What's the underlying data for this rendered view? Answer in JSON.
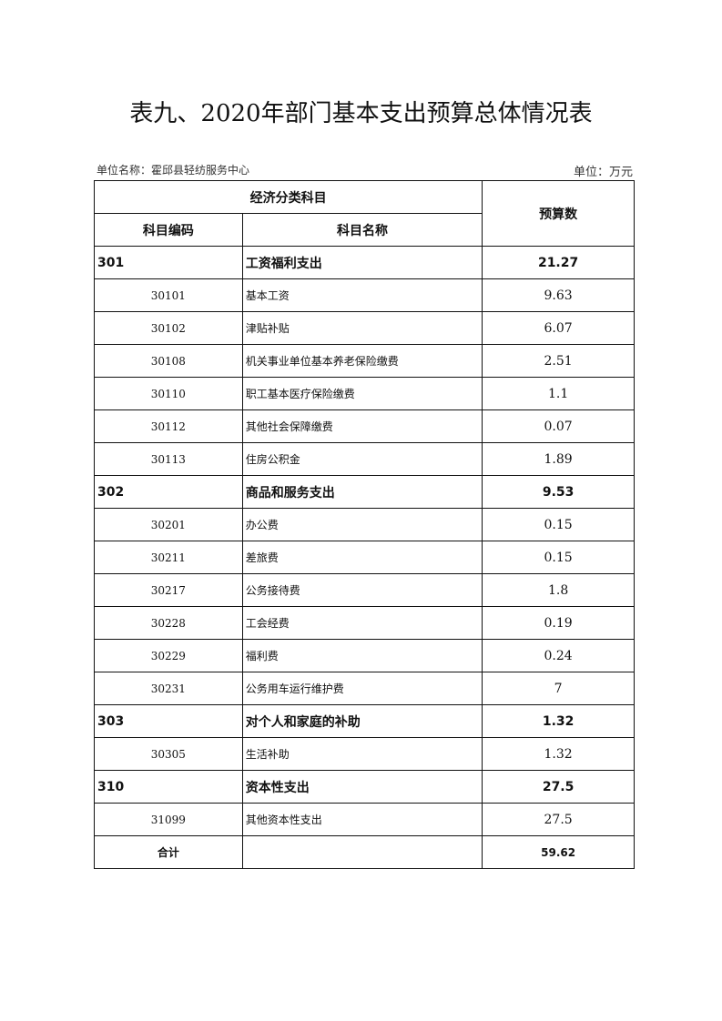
{
  "title": "表九、2020年部门基本支出预算总体情况表",
  "unit_name": "单位名称：霍邱县轻纺服务中心",
  "unit": "单位：万元",
  "header": {
    "group": "经济分类科目",
    "code": "科目编码",
    "name": "科目名称",
    "amount": "预算数"
  },
  "rows": [
    {
      "type": "cat",
      "code": "301",
      "name": "工资福利支出",
      "amount": "21.27"
    },
    {
      "type": "item",
      "code": "30101",
      "name": "基本工资",
      "amount": "9.63"
    },
    {
      "type": "item",
      "code": "30102",
      "name": "津贴补贴",
      "amount": "6.07"
    },
    {
      "type": "item",
      "code": "30108",
      "name": "机关事业单位基本养老保险缴费",
      "amount": "2.51"
    },
    {
      "type": "item",
      "code": "30110",
      "name": "职工基本医疗保险缴费",
      "amount": "1.1"
    },
    {
      "type": "item",
      "code": "30112",
      "name": "其他社会保障缴费",
      "amount": "0.07"
    },
    {
      "type": "item",
      "code": "30113",
      "name": "住房公积金",
      "amount": "1.89"
    },
    {
      "type": "cat",
      "code": "302",
      "name": "商品和服务支出",
      "amount": "9.53"
    },
    {
      "type": "item",
      "code": "30201",
      "name": "办公费",
      "amount": "0.15"
    },
    {
      "type": "item",
      "code": "30211",
      "name": "差旅费",
      "amount": "0.15"
    },
    {
      "type": "item",
      "code": "30217",
      "name": "公务接待费",
      "amount": "1.8"
    },
    {
      "type": "item",
      "code": "30228",
      "name": "工会经费",
      "amount": "0.19"
    },
    {
      "type": "item",
      "code": "30229",
      "name": "福利费",
      "amount": "0.24"
    },
    {
      "type": "item",
      "code": "30231",
      "name": "公务用车运行维护费",
      "amount": "7"
    },
    {
      "type": "cat",
      "code": "303",
      "name": "对个人和家庭的补助",
      "amount": "1.32"
    },
    {
      "type": "item",
      "code": "30305",
      "name": "生活补助",
      "amount": "1.32"
    },
    {
      "type": "cat",
      "code": "310",
      "name": "资本性支出",
      "amount": "27.5"
    },
    {
      "type": "item",
      "code": "31099",
      "name": "其他资本性支出",
      "amount": "27.5"
    }
  ],
  "total": {
    "label": "合计",
    "name": "",
    "amount": "59.62"
  }
}
